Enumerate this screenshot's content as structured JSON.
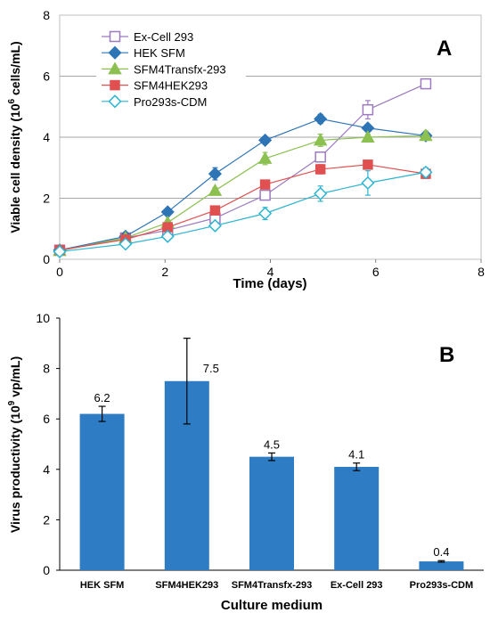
{
  "chart_data": [
    {
      "type": "line",
      "panel_label": "A",
      "xlabel": "Time (days)",
      "ylabel": {
        "main": "Viable cell density (10",
        "exp": "6",
        "tail": " cells/mL)"
      },
      "xlim": [
        0,
        8
      ],
      "ylim": [
        0,
        8
      ],
      "xticks": [
        "0",
        "2",
        "4",
        "6",
        "8"
      ],
      "yticks": [
        "0",
        "2",
        "4",
        "6",
        "8"
      ],
      "grid": "horizontal",
      "legend_position": "top-left",
      "series": [
        {
          "name": "Ex-Cell 293",
          "marker": "square-open",
          "color": "#9c7bbf",
          "x": [
            0,
            1.25,
            2.05,
            2.95,
            3.9,
            4.95,
            5.85,
            6.95
          ],
          "y": [
            0.3,
            0.7,
            0.95,
            1.35,
            2.1,
            3.35,
            4.9,
            5.75
          ],
          "err": [
            0.08,
            0.05,
            0.06,
            0.06,
            0.1,
            0.12,
            0.3,
            0.1
          ]
        },
        {
          "name": "HEK SFM",
          "marker": "diamond-filled",
          "color": "#2e75b6",
          "x": [
            0,
            1.25,
            2.05,
            2.95,
            3.9,
            4.95,
            5.85,
            6.95
          ],
          "y": [
            0.3,
            0.75,
            1.55,
            2.8,
            3.9,
            4.6,
            4.3,
            4.05
          ],
          "err": [
            0.08,
            0.05,
            0.08,
            0.2,
            0.08,
            0.15,
            0.1,
            0.12
          ]
        },
        {
          "name": "SFM4Transfx-293",
          "marker": "triangle-filled",
          "color": "#8cc152",
          "x": [
            0,
            1.25,
            2.05,
            2.95,
            3.9,
            4.95,
            5.85,
            6.95
          ],
          "y": [
            0.28,
            0.7,
            1.2,
            2.25,
            3.3,
            3.9,
            4.0,
            4.05
          ],
          "err": [
            0.08,
            0.05,
            0.08,
            0.1,
            0.2,
            0.2,
            0.1,
            0.15
          ]
        },
        {
          "name": "SFM4HEK293",
          "marker": "square-filled",
          "color": "#e05050",
          "x": [
            0,
            1.25,
            2.05,
            2.95,
            3.9,
            4.95,
            5.85,
            6.95
          ],
          "y": [
            0.3,
            0.65,
            1.05,
            1.6,
            2.45,
            2.95,
            3.1,
            2.8
          ],
          "err": [
            0.08,
            0.05,
            0.06,
            0.08,
            0.1,
            0.15,
            0.1,
            0.15
          ]
        },
        {
          "name": "Pro293s-CDM",
          "marker": "diamond-open",
          "color": "#2bb5d1",
          "x": [
            0,
            1.25,
            2.05,
            2.95,
            3.9,
            4.95,
            5.85,
            6.95
          ],
          "y": [
            0.25,
            0.5,
            0.75,
            1.1,
            1.5,
            2.15,
            2.5,
            2.85
          ],
          "err": [
            0.08,
            0.05,
            0.06,
            0.08,
            0.2,
            0.25,
            0.4,
            0.15
          ]
        }
      ]
    },
    {
      "type": "bar",
      "panel_label": "B",
      "xlabel": "Culture medium",
      "ylabel": {
        "main": "Virus productivity (10",
        "exp": "9",
        "tail": " vp/mL)"
      },
      "ylim": [
        0,
        10
      ],
      "yticks": [
        "0",
        "2",
        "4",
        "6",
        "8",
        "10"
      ],
      "color": "#2e7dc4",
      "categories": [
        "HEK SFM",
        "SFM4HEK293",
        "SFM4Transfx-293",
        "Ex-Cell 293",
        "Pro293s-CDM"
      ],
      "values": [
        6.2,
        7.5,
        4.5,
        4.1,
        0.35
      ],
      "value_labels": [
        "6.2",
        "7.5",
        "4.5",
        "4.1",
        "0.4"
      ],
      "err_low": [
        0.3,
        1.7,
        0.15,
        0.15,
        0.03
      ],
      "err_high": [
        0.3,
        1.7,
        0.15,
        0.15,
        0.03
      ]
    }
  ]
}
